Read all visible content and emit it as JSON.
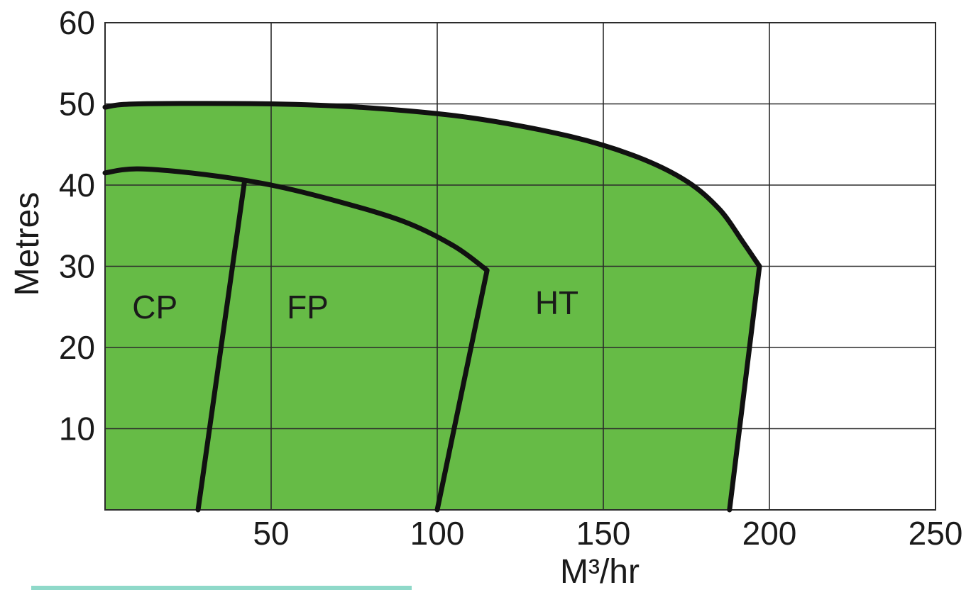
{
  "chart_data": {
    "type": "area",
    "xlabel": "M³/hr",
    "ylabel": "Metres",
    "xlim": [
      0,
      250
    ],
    "ylim": [
      0,
      60
    ],
    "x_ticks": [
      "50",
      "100",
      "150",
      "200",
      "250"
    ],
    "y_ticks": [
      "10",
      "20",
      "30",
      "40",
      "50",
      "60"
    ],
    "grid": true,
    "fill_color": "#66bb46",
    "line_color": "#111111",
    "outer_envelope": {
      "x": [
        0,
        10,
        50,
        80,
        110,
        140,
        160,
        175,
        185,
        192,
        197,
        188
      ],
      "y": [
        49.6,
        50,
        50,
        49.5,
        48.3,
        46,
        43.5,
        40.5,
        37,
        33,
        30,
        0
      ]
    },
    "series": [
      {
        "name": "FP",
        "x": [
          0,
          10,
          30,
          50,
          70,
          90,
          105,
          115,
          100
        ],
        "y": [
          41.5,
          42,
          41.3,
          40,
          38,
          35.5,
          32.5,
          29.5,
          0
        ]
      },
      {
        "name": "CP",
        "x": [
          42,
          28
        ],
        "y": [
          40.5,
          0
        ]
      },
      {
        "name": "HT",
        "x": [
          0,
          10,
          50,
          80,
          110,
          140,
          160,
          175,
          185,
          192,
          197,
          188
        ],
        "y": [
          49.6,
          50,
          50,
          49.5,
          48.3,
          46,
          43.5,
          40.5,
          37,
          33,
          30,
          0
        ]
      }
    ],
    "region_labels": [
      {
        "text": "CP",
        "x": 15,
        "y": 25
      },
      {
        "text": "FP",
        "x": 61,
        "y": 25
      },
      {
        "text": "HT",
        "x": 136,
        "y": 25.5
      }
    ]
  }
}
